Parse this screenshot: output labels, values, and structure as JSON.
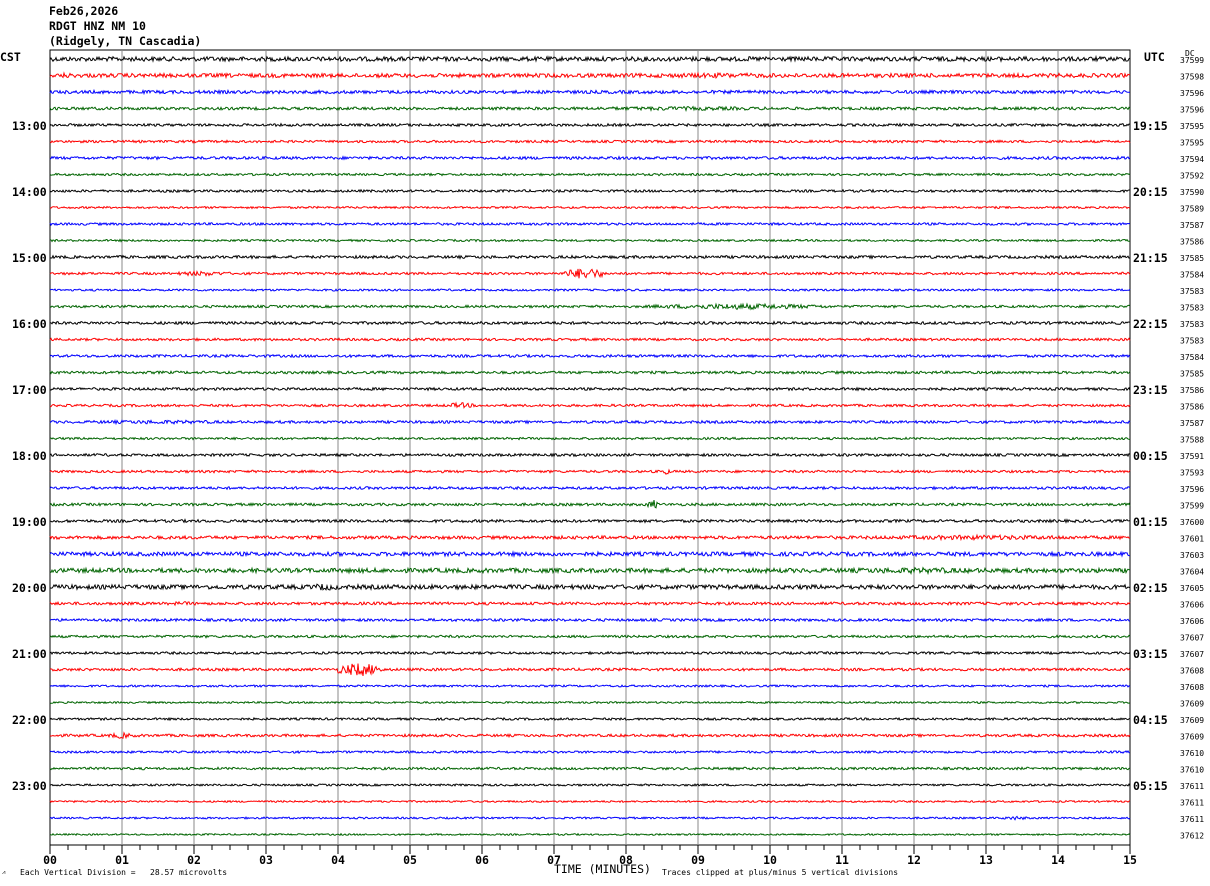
{
  "header": {
    "date": "Feb26,2026",
    "station": "RDGT HNZ NM 10",
    "location": "(Ridgely, TN Cascadia)"
  },
  "left_timezone": "CST",
  "right_timezone": "UTC",
  "dc_label": "DC",
  "footer": {
    "scale": "Each Vertical Division =   28.57 microvolts",
    "xlabel": "TIME (MINUTES)",
    "clip": "Traces clipped at plus/minus 5 vertical divisions"
  },
  "colors": [
    "#000000",
    "#ff0000",
    "#0000ff",
    "#006400"
  ],
  "chart_data": {
    "type": "line",
    "xlabel": "TIME (MINUTES)",
    "xlim": [
      0,
      15
    ],
    "x_ticks": [
      "00",
      "01",
      "02",
      "03",
      "04",
      "05",
      "06",
      "07",
      "08",
      "09",
      "10",
      "11",
      "12",
      "13",
      "14",
      "15"
    ],
    "trace_minutes": 15,
    "trace_count": 48,
    "left_labels": [
      {
        "trace": 4,
        "text": "13:00"
      },
      {
        "trace": 8,
        "text": "14:00"
      },
      {
        "trace": 12,
        "text": "15:00"
      },
      {
        "trace": 16,
        "text": "16:00"
      },
      {
        "trace": 20,
        "text": "17:00"
      },
      {
        "trace": 24,
        "text": "18:00"
      },
      {
        "trace": 28,
        "text": "19:00"
      },
      {
        "trace": 32,
        "text": "20:00"
      },
      {
        "trace": 36,
        "text": "21:00"
      },
      {
        "trace": 40,
        "text": "22:00"
      },
      {
        "trace": 44,
        "text": "23:00"
      }
    ],
    "right_labels": [
      {
        "trace": 4,
        "text": "19:15"
      },
      {
        "trace": 8,
        "text": "20:15"
      },
      {
        "trace": 12,
        "text": "21:15"
      },
      {
        "trace": 16,
        "text": "22:15"
      },
      {
        "trace": 20,
        "text": "23:15"
      },
      {
        "trace": 24,
        "text": "00:15"
      },
      {
        "trace": 28,
        "text": "01:15"
      },
      {
        "trace": 32,
        "text": "02:15"
      },
      {
        "trace": 36,
        "text": "03:15"
      },
      {
        "trace": 40,
        "text": "04:15"
      },
      {
        "trace": 44,
        "text": "05:15"
      }
    ],
    "dc_offsets": [
      "37599",
      "37598",
      "37596",
      "37596",
      "37595",
      "37595",
      "37594",
      "37592",
      "37590",
      "37589",
      "37587",
      "37586",
      "37585",
      "37584",
      "37583",
      "37583",
      "37583",
      "37583",
      "37584",
      "37585",
      "37586",
      "37586",
      "37587",
      "37588",
      "37591",
      "37593",
      "37596",
      "37599",
      "37600",
      "37601",
      "37603",
      "37604",
      "37605",
      "37606",
      "37606",
      "37607",
      "37607",
      "37608",
      "37608",
      "37609",
      "37609",
      "37609",
      "37610",
      "37610",
      "37611",
      "37611",
      "37611",
      "37612"
    ],
    "noise_amplitude": [
      2.2,
      2.0,
      1.6,
      1.4,
      1.3,
      1.2,
      1.4,
      1.1,
      1.2,
      1.0,
      1.2,
      1.0,
      1.4,
      1.2,
      1.0,
      1.2,
      1.4,
      1.2,
      1.3,
      1.3,
      1.3,
      1.2,
      1.3,
      1.1,
      1.3,
      1.2,
      1.3,
      1.3,
      1.4,
      1.6,
      2.0,
      2.2,
      2.2,
      1.4,
      1.3,
      1.2,
      1.2,
      1.3,
      1.0,
      0.9,
      1.1,
      1.3,
      1.1,
      1.2,
      1.0,
      0.9,
      0.9,
      0.8
    ],
    "events": [
      {
        "trace": 1,
        "start_min": 0.1,
        "end_min": 0.35,
        "amplitude": 3
      },
      {
        "trace": 1,
        "start_min": 7.0,
        "end_min": 11.5,
        "amplitude": 2.5
      },
      {
        "trace": 3,
        "start_min": 6.4,
        "end_min": 11.0,
        "amplitude": 2
      },
      {
        "trace": 13,
        "start_min": 1.7,
        "end_min": 2.5,
        "amplitude": 2.5
      },
      {
        "trace": 13,
        "start_min": 7.15,
        "end_min": 7.7,
        "amplitude": 6
      },
      {
        "trace": 15,
        "start_min": 8.3,
        "end_min": 10.8,
        "amplitude": 3
      },
      {
        "trace": 21,
        "start_min": 5.5,
        "end_min": 5.9,
        "amplitude": 3
      },
      {
        "trace": 22,
        "start_min": 0.0,
        "end_min": 3.0,
        "amplitude": 2
      },
      {
        "trace": 25,
        "start_min": 8.5,
        "end_min": 8.6,
        "amplitude": 4
      },
      {
        "trace": 27,
        "start_min": 8.3,
        "end_min": 8.45,
        "amplitude": 5
      },
      {
        "trace": 29,
        "start_min": 11.0,
        "end_min": 15.0,
        "amplitude": 2.5
      },
      {
        "trace": 31,
        "start_min": 10.0,
        "end_min": 14.0,
        "amplitude": 3
      },
      {
        "trace": 32,
        "start_min": 3.5,
        "end_min": 4.1,
        "amplitude": 3.5
      },
      {
        "trace": 33,
        "start_min": 1.5,
        "end_min": 2.2,
        "amplitude": 2
      },
      {
        "trace": 37,
        "start_min": 4.0,
        "end_min": 4.6,
        "amplitude": 7
      },
      {
        "trace": 41,
        "start_min": 0.8,
        "end_min": 1.2,
        "amplitude": 3
      },
      {
        "trace": 46,
        "start_min": 13.2,
        "end_min": 13.6,
        "amplitude": 2
      }
    ]
  }
}
